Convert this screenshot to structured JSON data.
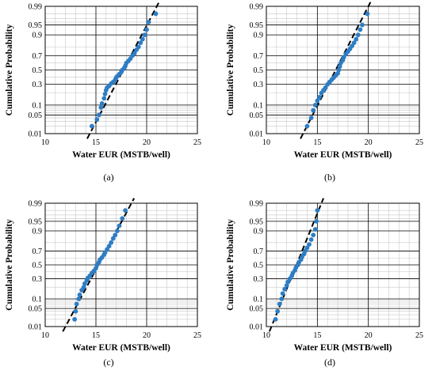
{
  "chart_data": [
    {
      "type": "scatter",
      "caption": "(a)",
      "xlabel": "Water EUR (MSTB/well)",
      "ylabel": "Cumulative Probability",
      "xlim": [
        10,
        25
      ],
      "x_ticks": [
        10,
        15,
        20,
        25
      ],
      "y_scale": "normal-probability",
      "y_ticks": [
        "0.01",
        "0.05",
        "0.1",
        "0.3",
        "0.5",
        "0.7",
        "0.9",
        "0.95",
        "0.99"
      ],
      "grid": true,
      "fit_line": {
        "style": "dashed",
        "x": [
          14.4,
          21.0
        ],
        "p": [
          0.01,
          0.99
        ]
      },
      "x": [
        14.6,
        15.1,
        15.3,
        15.5,
        15.6,
        15.8,
        15.9,
        16.0,
        16.1,
        16.3,
        16.5,
        16.7,
        16.9,
        17.0,
        17.1,
        17.3,
        17.5,
        17.6,
        17.8,
        17.9,
        18.0,
        18.2,
        18.4,
        18.6,
        18.8,
        19.0,
        19.2,
        19.4,
        19.6,
        19.8,
        20.0,
        20.2,
        20.9
      ],
      "p": [
        0.02,
        0.035,
        0.05,
        0.085,
        0.11,
        0.15,
        0.19,
        0.23,
        0.26,
        0.28,
        0.31,
        0.33,
        0.36,
        0.39,
        0.41,
        0.44,
        0.47,
        0.5,
        0.53,
        0.56,
        0.6,
        0.63,
        0.66,
        0.7,
        0.73,
        0.77,
        0.8,
        0.84,
        0.87,
        0.9,
        0.93,
        0.96,
        0.98
      ]
    },
    {
      "type": "scatter",
      "caption": "(b)",
      "xlabel": "Water EUR (MSTB/well)",
      "ylabel": "Cumulative Probability",
      "xlim": [
        10,
        25
      ],
      "x_ticks": [
        10,
        15,
        20,
        25
      ],
      "y_scale": "normal-probability",
      "y_ticks": [
        "0.01",
        "0.05",
        "0.1",
        "0.3",
        "0.5",
        "0.7",
        "0.9",
        "0.95",
        "0.99"
      ],
      "grid": true,
      "fit_line": {
        "style": "dashed",
        "x": [
          13.6,
          20.0
        ],
        "p": [
          0.01,
          0.99
        ]
      },
      "x": [
        14.0,
        14.4,
        14.6,
        14.8,
        15.0,
        15.2,
        15.4,
        15.6,
        15.8,
        16.0,
        16.2,
        16.4,
        16.6,
        16.8,
        17.0,
        17.1,
        17.2,
        17.3,
        17.5,
        17.6,
        17.8,
        18.0,
        18.2,
        18.4,
        18.6,
        18.8,
        19.0,
        19.2,
        19.4,
        19.9
      ],
      "p": [
        0.02,
        0.04,
        0.07,
        0.1,
        0.13,
        0.16,
        0.2,
        0.23,
        0.26,
        0.3,
        0.33,
        0.36,
        0.39,
        0.42,
        0.45,
        0.5,
        0.55,
        0.6,
        0.64,
        0.68,
        0.72,
        0.75,
        0.78,
        0.81,
        0.84,
        0.87,
        0.9,
        0.93,
        0.95,
        0.98
      ]
    },
    {
      "type": "scatter",
      "caption": "(c)",
      "xlabel": "Water EUR (MSTB/well)",
      "ylabel": "Cumulative Probability",
      "xlim": [
        10,
        25
      ],
      "x_ticks": [
        10,
        15,
        20,
        25
      ],
      "y_scale": "normal-probability",
      "y_ticks": [
        "0.01",
        "0.05",
        "0.1",
        "0.3",
        "0.5",
        "0.7",
        "0.9",
        "0.95",
        "0.99"
      ],
      "grid": true,
      "fit_line": {
        "style": "dashed",
        "x": [
          12.0,
          18.5
        ],
        "p": [
          0.01,
          0.99
        ]
      },
      "x": [
        12.9,
        13.0,
        13.1,
        13.3,
        13.4,
        13.6,
        13.8,
        13.9,
        14.1,
        14.2,
        14.4,
        14.6,
        14.8,
        15.0,
        15.1,
        15.3,
        15.4,
        15.6,
        15.8,
        15.9,
        16.1,
        16.3,
        16.5,
        16.7,
        16.9,
        17.1,
        17.3,
        17.6,
        17.9
      ],
      "p": [
        0.02,
        0.04,
        0.07,
        0.1,
        0.13,
        0.17,
        0.2,
        0.24,
        0.28,
        0.31,
        0.34,
        0.38,
        0.41,
        0.45,
        0.5,
        0.54,
        0.58,
        0.61,
        0.65,
        0.68,
        0.72,
        0.76,
        0.8,
        0.84,
        0.87,
        0.9,
        0.93,
        0.96,
        0.98
      ]
    },
    {
      "type": "scatter",
      "caption": "(d)",
      "xlabel": "Water EUR (MSTB/well)",
      "ylabel": "Cumulative Probability",
      "xlim": [
        10,
        25
      ],
      "x_ticks": [
        10,
        15,
        20,
        25
      ],
      "y_scale": "normal-probability",
      "y_ticks": [
        "0.01",
        "0.05",
        "0.1",
        "0.3",
        "0.5",
        "0.7",
        "0.9",
        "0.95",
        "0.99"
      ],
      "grid": true,
      "fit_line": {
        "style": "dashed",
        "x": [
          10.5,
          15.4
        ],
        "p": [
          0.01,
          0.99
        ]
      },
      "x": [
        10.9,
        11.1,
        11.3,
        11.5,
        11.6,
        11.8,
        12.0,
        12.1,
        12.3,
        12.5,
        12.6,
        12.8,
        12.9,
        13.1,
        13.2,
        13.4,
        13.5,
        13.7,
        13.8,
        14.0,
        14.2,
        14.4,
        14.6,
        14.8,
        14.9,
        15.0
      ],
      "p": [
        0.02,
        0.04,
        0.07,
        0.1,
        0.14,
        0.18,
        0.22,
        0.26,
        0.3,
        0.34,
        0.38,
        0.42,
        0.46,
        0.5,
        0.54,
        0.58,
        0.62,
        0.66,
        0.7,
        0.74,
        0.78,
        0.83,
        0.87,
        0.91,
        0.95,
        0.98
      ]
    }
  ],
  "colors": {
    "points": "#2e7dc4",
    "fit_line": "#000000",
    "grid_major": "#000000",
    "grid_minor": "#c8c8c8"
  }
}
